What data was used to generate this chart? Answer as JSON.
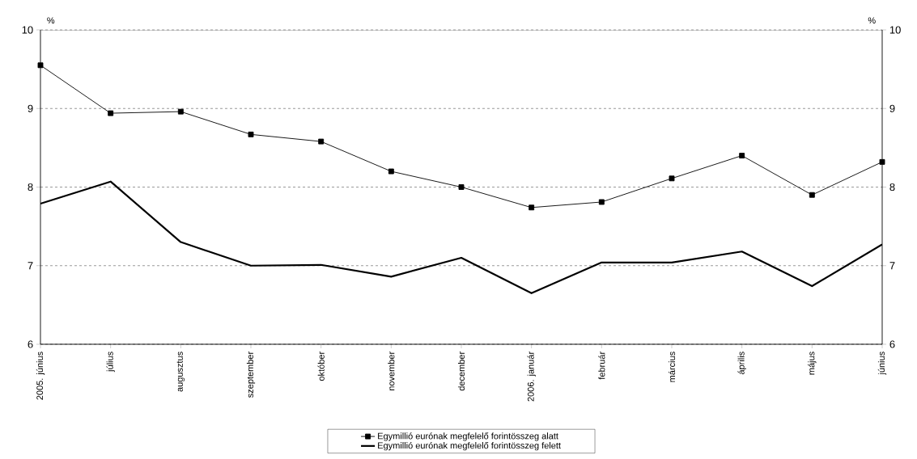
{
  "chart_data": {
    "type": "line",
    "ylabel": "%",
    "y2label": "%",
    "categories": [
      "2005. június",
      "július",
      "augusztus",
      "szeptember",
      "október",
      "november",
      "december",
      "2006. január",
      "február",
      "március",
      "április",
      "május",
      "június"
    ],
    "series": [
      {
        "name": "Egymillió eurónak megfelelő forintösszeg alatt",
        "color": "#000000",
        "marker": "square",
        "values": [
          9.55,
          8.94,
          8.96,
          8.67,
          8.58,
          8.2,
          8.0,
          7.74,
          7.81,
          8.11,
          8.4,
          7.9,
          8.32
        ]
      },
      {
        "name": "Egymillió eurónak megfelelő forintösszeg felett",
        "color": "#000000",
        "marker": "none",
        "values": [
          7.79,
          8.07,
          7.3,
          7.0,
          7.01,
          6.86,
          7.1,
          6.65,
          7.04,
          7.04,
          7.18,
          6.74,
          7.27
        ]
      }
    ],
    "ylim": [
      6,
      10
    ],
    "yticks": [
      6,
      7,
      8,
      9,
      10
    ],
    "y2lim": [
      6,
      10
    ],
    "y2ticks": [
      6,
      7,
      8,
      9,
      10
    ],
    "grid": "y",
    "legend": "bottom",
    "line_style": "solid"
  }
}
